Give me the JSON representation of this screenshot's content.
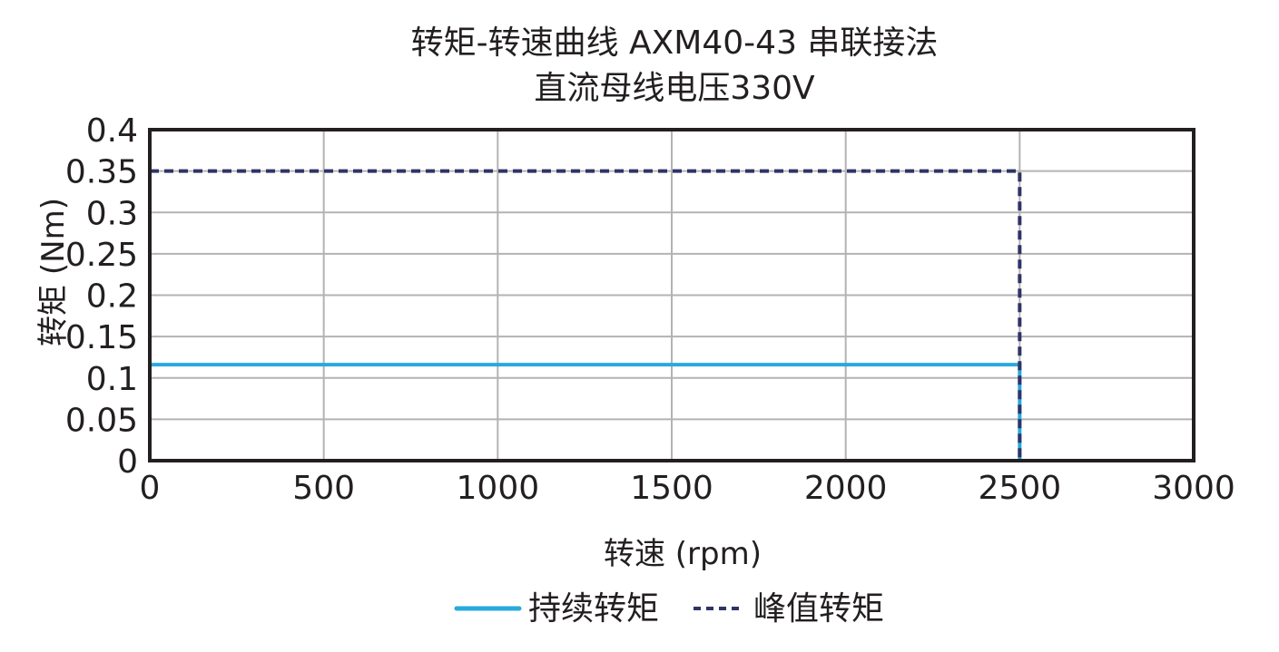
{
  "chart_data": {
    "type": "line",
    "title": "转矩-转速曲线 AXM40-43 串联接法",
    "subtitle": "直流母线电压330V",
    "xlabel": "转速 (rpm)",
    "ylabel": "转矩 (Nm)",
    "xlim": [
      0,
      3000
    ],
    "ylim": [
      0,
      0.4
    ],
    "x_ticks": [
      "0",
      "500",
      "1000",
      "1500",
      "2000",
      "2500",
      "3000"
    ],
    "y_ticks": [
      "0",
      "0.05",
      "0.1",
      "0.15",
      "0.2",
      "0.25",
      "0.3",
      "0.35",
      "0.4"
    ],
    "grid": true,
    "legend_position": "bottom",
    "series": [
      {
        "name": "持续转矩",
        "style": "solid",
        "color": "#29a9dc",
        "x": [
          0,
          2500,
          2500
        ],
        "y": [
          0.116,
          0.116,
          0
        ]
      },
      {
        "name": "峰值转矩",
        "style": "dashed",
        "color": "#2e3466",
        "x": [
          0,
          2500,
          2500
        ],
        "y": [
          0.35,
          0.35,
          0
        ]
      }
    ]
  }
}
